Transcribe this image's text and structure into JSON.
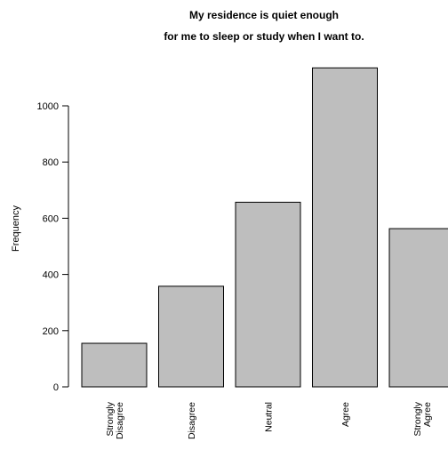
{
  "chart_data": {
    "type": "bar",
    "title_lines": [
      "My residence is quiet enough",
      "for me to sleep or study when I want to."
    ],
    "xlabel": "",
    "ylabel": "Frequency",
    "categories": [
      [
        "Strongly",
        "Disagree"
      ],
      [
        "Disagree"
      ],
      [
        "Neutral"
      ],
      [
        "Agree"
      ],
      [
        "Strongly",
        "Agree"
      ]
    ],
    "values": [
      155,
      358,
      657,
      1135,
      563
    ],
    "yticks": [
      0,
      200,
      400,
      600,
      800,
      1000
    ],
    "ylim": [
      0,
      1135
    ],
    "bar_color": "#bebebe",
    "border_color": "#000000",
    "grid": false,
    "legend": "none"
  }
}
